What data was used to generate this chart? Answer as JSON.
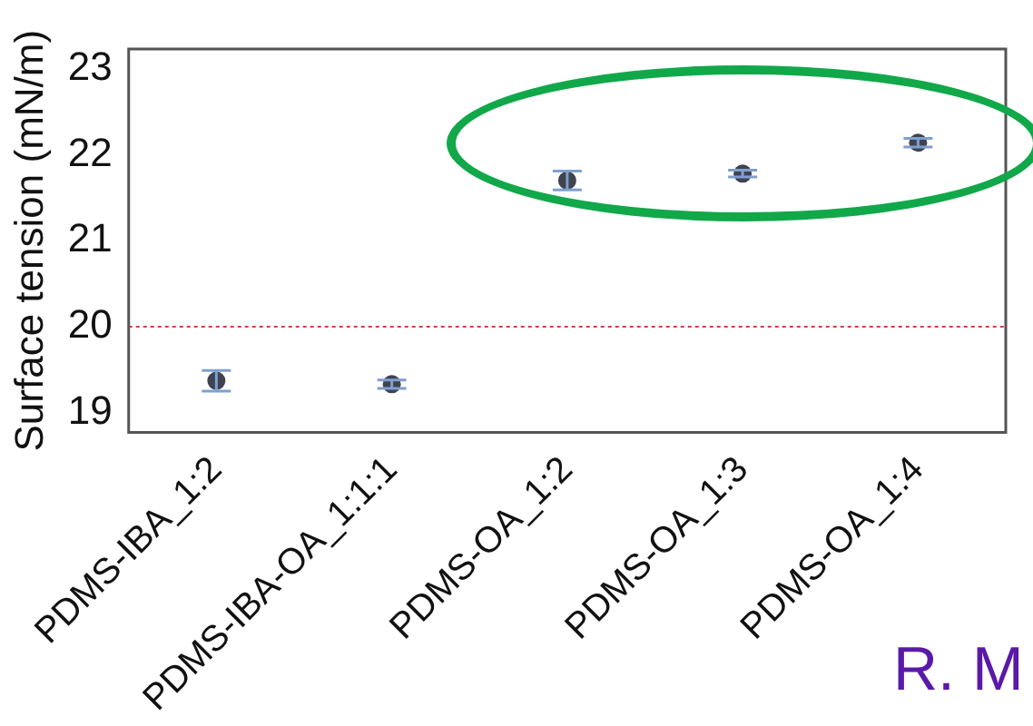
{
  "chart_data": {
    "type": "scatter",
    "ylabel": "Surface tension (mN/m)",
    "categories": [
      "PDMS-IBA_1:2",
      "PDMS-IBA-OA_1:1:1",
      "PDMS-OA_1:2",
      "PDMS-OA_1:3",
      "PDMS-OA_1:4"
    ],
    "series": [
      {
        "color": "#3f4450",
        "values": [
          19.37,
          19.33,
          21.7,
          21.78,
          22.14
        ],
        "errors": [
          0.12,
          0.05,
          0.11,
          0.04,
          0.05
        ]
      }
    ],
    "ylim": [
      18.77,
      23.23
    ],
    "yticks": [
      19,
      20,
      21,
      22,
      23
    ],
    "grid": false,
    "legend": false,
    "marker": "circle",
    "ref_lines": [
      {
        "axis": "y",
        "value": 20,
        "color": "#d04040",
        "line_style": "dotted"
      }
    ],
    "annotations": [
      "R. M"
    ]
  }
}
